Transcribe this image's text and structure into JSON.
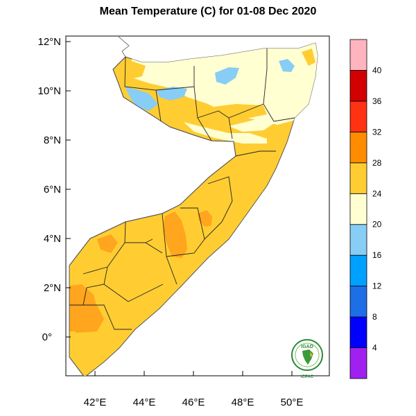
{
  "title": "Mean Temperature (C) for 01-08 Dec 2020",
  "map": {
    "lat_labels": [
      "12°N",
      "10°N",
      "8°N",
      "6°N",
      "4°N",
      "2°N",
      "0°"
    ],
    "lon_labels": [
      "42°E",
      "44°E",
      "46°E",
      "48°E",
      "50°E"
    ],
    "lat_range": [
      -1.6,
      12.2
    ],
    "lon_range": [
      41.0,
      51.2
    ],
    "land_dominant_class": "24-28",
    "ocean_color": "#ffffff"
  },
  "colorbar": {
    "labels": [
      "4",
      "8",
      "12",
      "16",
      "20",
      "24",
      "28",
      "32",
      "36",
      "40"
    ],
    "colors": [
      "#a020f0",
      "#0000ff",
      "#1e6ee6",
      "#00a0ff",
      "#87cdf5",
      "#ffffd2",
      "#ffcd32",
      "#ff8c00",
      "#ff3214",
      "#d20000",
      "#ffb4be"
    ]
  },
  "logo": {
    "top_text": "IGAD",
    "bottom_text": "ICPAC"
  }
}
